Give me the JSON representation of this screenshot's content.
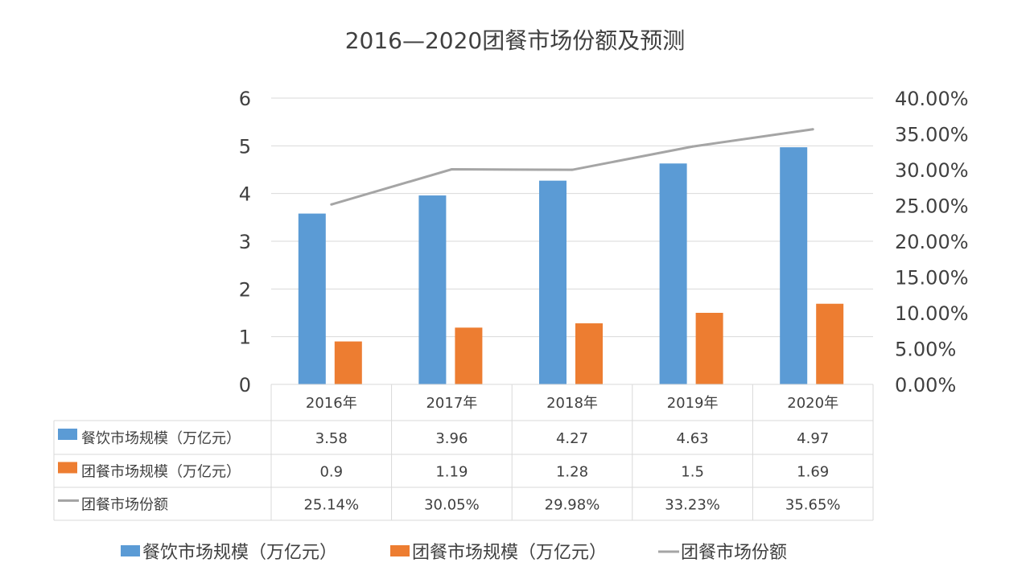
{
  "chart_data": {
    "type": "bar",
    "title": "2016—2020团餐市场份额及预测",
    "categories": [
      "2016年",
      "2017年",
      "2018年",
      "2019年",
      "2020年"
    ],
    "y_left": {
      "ticks": [
        "0",
        "1",
        "2",
        "3",
        "4",
        "5",
        "6"
      ],
      "ylim": [
        0,
        6
      ]
    },
    "y_right": {
      "ticks": [
        "0.00%",
        "5.00%",
        "10.00%",
        "15.00%",
        "20.00%",
        "25.00%",
        "30.00%",
        "35.00%",
        "40.00%"
      ],
      "ylim": [
        0,
        0.4
      ]
    },
    "series": [
      {
        "name": "餐饮市场规模（万亿元）",
        "type": "bar",
        "axis": "left",
        "color": "#5b9bd5",
        "values": [
          3.58,
          3.96,
          4.27,
          4.63,
          4.97
        ],
        "labels": [
          "3.58",
          "3.96",
          "4.27",
          "4.63",
          "4.97"
        ]
      },
      {
        "name": "团餐市场规模（万亿元）",
        "type": "bar",
        "axis": "left",
        "color": "#ed7d31",
        "values": [
          0.9,
          1.19,
          1.28,
          1.5,
          1.69
        ],
        "labels": [
          "0.9",
          "1.19",
          "1.28",
          "1.5",
          "1.69"
        ]
      },
      {
        "name": "团餐市场份额",
        "type": "line",
        "axis": "right",
        "color": "#a5a5a5",
        "values": [
          0.2514,
          0.3005,
          0.2998,
          0.3323,
          0.3565
        ],
        "labels": [
          "25.14%",
          "30.05%",
          "29.98%",
          "33.23%",
          "35.65%"
        ]
      }
    ],
    "grid": true,
    "legend": "bottom",
    "data_table": true
  }
}
